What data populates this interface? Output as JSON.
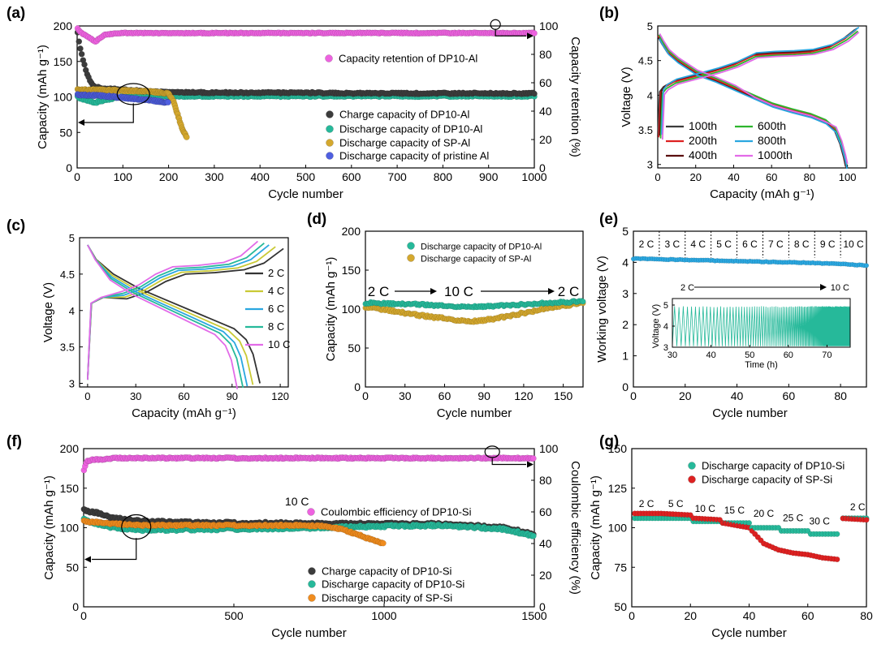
{
  "colors": {
    "black": "#3c3c3c",
    "teal": "#26b99a",
    "gold": "#d4a82e",
    "blue": "#4f5fe0",
    "pink": "#ee62e0",
    "orange": "#f08c1e",
    "red": "#dd2121",
    "cyan": "#2aa7e0",
    "green": "#2db52d",
    "yellow": "#c9c935",
    "darkred": "#5a0f0f",
    "darkgray": "#333333",
    "rose": "#d63a5a",
    "violet": "#e26be8"
  },
  "chart_data": [
    {
      "id": "a",
      "panel_label": "(a)",
      "type": "scatter",
      "xlabel": "Cycle number",
      "ylabel": "Capacity (mAh g⁻¹)",
      "y2label": "Capacity retention (%)",
      "xlim": [
        0,
        1000
      ],
      "ylim": [
        0,
        200
      ],
      "y2lim": [
        0,
        100
      ],
      "xticks": [
        0,
        100,
        200,
        300,
        400,
        500,
        600,
        700,
        800,
        900,
        1000
      ],
      "yticks": [
        0,
        50,
        100,
        150,
        200
      ],
      "y2ticks": [
        0,
        20,
        40,
        60,
        80,
        100
      ],
      "legend": [
        "Charge capacity of DP10-Al",
        "Discharge capacity of DP10-Al",
        "Discharge capacity of SP-Al",
        "Discharge capacity of pristine Al"
      ],
      "legend2": [
        "Capacity retention of DP10-Al"
      ],
      "series": [
        {
          "name": "Charge capacity of DP10-Al",
          "color": "black",
          "x": [
            1,
            5,
            10,
            20,
            30,
            40,
            60,
            100,
            150,
            200,
            300,
            400,
            500,
            600,
            700,
            800,
            900,
            1000
          ],
          "y": [
            190,
            175,
            160,
            135,
            120,
            114,
            112,
            110,
            108,
            107,
            106,
            106,
            106,
            105,
            105,
            105,
            105,
            105
          ]
        },
        {
          "name": "Discharge capacity of DP10-Al",
          "color": "teal",
          "x": [
            1,
            20,
            40,
            60,
            100,
            150,
            200,
            300,
            400,
            500,
            600,
            700,
            800,
            900,
            1000
          ],
          "y": [
            100,
            95,
            92,
            96,
            100,
            101,
            101,
            101,
            101,
            101,
            101,
            101,
            101,
            101,
            101
          ]
        },
        {
          "name": "Discharge capacity of SP-Al",
          "color": "gold",
          "x": [
            1,
            50,
            100,
            150,
            200,
            210,
            220,
            230,
            240
          ],
          "y": [
            110,
            110,
            109,
            108,
            105,
            95,
            75,
            55,
            43
          ]
        },
        {
          "name": "Discharge capacity of pristine Al",
          "color": "blue",
          "x": [
            1,
            50,
            100,
            150,
            200
          ],
          "y": [
            103,
            102,
            99,
            96,
            92
          ]
        },
        {
          "name": "Capacity retention of DP10-Al",
          "color": "pink",
          "axis": "y2",
          "x": [
            1,
            10,
            25,
            40,
            60,
            100,
            200,
            400,
            600,
            800,
            1000
          ],
          "y": [
            98,
            95,
            92,
            89,
            94,
            95,
            95,
            95,
            95,
            95,
            95
          ]
        }
      ]
    },
    {
      "id": "b",
      "panel_label": "(b)",
      "type": "line",
      "xlabel": "Capacity (mAh g⁻¹)",
      "ylabel": "Voltage (V)",
      "xlim": [
        0,
        110
      ],
      "ylim": [
        2.95,
        5.0
      ],
      "xticks": [
        0,
        20,
        40,
        60,
        80,
        100
      ],
      "yticks": [
        3.0,
        3.5,
        4.0,
        4.5,
        5.0
      ],
      "legend": [
        "100th",
        "200th",
        "400th",
        "600th",
        "800th",
        "1000th"
      ],
      "series": [
        {
          "name": "100th",
          "color": "black"
        },
        {
          "name": "200th",
          "color": "red"
        },
        {
          "name": "400th",
          "color": "darkred"
        },
        {
          "name": "600th",
          "color": "green"
        },
        {
          "name": "800th",
          "color": "cyan"
        },
        {
          "name": "1000th",
          "color": "violet"
        }
      ],
      "charge_curve": {
        "x": [
          0,
          1,
          3,
          8,
          15,
          22,
          30,
          40,
          50,
          60,
          70,
          80,
          90,
          98,
          104
        ],
        "y": [
          3.4,
          4.05,
          4.12,
          4.2,
          4.25,
          4.3,
          4.36,
          4.45,
          4.58,
          4.6,
          4.61,
          4.63,
          4.7,
          4.82,
          4.95
        ]
      },
      "discharge_curve": {
        "x": [
          0,
          2,
          5,
          10,
          20,
          30,
          40,
          50,
          60,
          70,
          80,
          88,
          93,
          96,
          98,
          99
        ],
        "y": [
          4.85,
          4.75,
          4.62,
          4.5,
          4.32,
          4.22,
          4.1,
          3.98,
          3.86,
          3.78,
          3.71,
          3.62,
          3.5,
          3.3,
          3.1,
          2.97
        ]
      }
    },
    {
      "id": "c",
      "panel_label": "(c)",
      "type": "line",
      "xlabel": "Capacity (mAh g⁻¹)",
      "ylabel": "Voltage (V)",
      "xlim": [
        -5,
        125
      ],
      "ylim": [
        2.95,
        5.0
      ],
      "xticks": [
        0,
        30,
        60,
        90,
        120
      ],
      "yticks": [
        3.0,
        3.5,
        4.0,
        4.5,
        5.0
      ],
      "legend": [
        "2 C",
        "4 C",
        "6 C",
        "8 C",
        "10 C"
      ],
      "series": [
        {
          "name": "2 C",
          "color": "darkgray",
          "xmax": 122
        },
        {
          "name": "4 C",
          "color": "yellow",
          "xmax": 117
        },
        {
          "name": "6 C",
          "color": "cyan",
          "xmax": 113
        },
        {
          "name": "8 C",
          "color": "teal",
          "xmax": 110
        },
        {
          "name": "10 C",
          "color": "violet",
          "xmax": 106
        }
      ],
      "charge_curve": {
        "x": [
          0,
          0.02,
          0.08,
          0.2,
          0.3,
          0.4,
          0.5,
          0.65,
          0.8,
          0.9,
          1.0
        ],
        "y": [
          3.05,
          4.1,
          4.18,
          4.26,
          4.35,
          4.5,
          4.6,
          4.62,
          4.66,
          4.75,
          4.95
        ]
      },
      "discharge_curve": {
        "x": [
          0,
          0.05,
          0.15,
          0.3,
          0.45,
          0.6,
          0.75,
          0.85,
          0.92,
          0.96,
          0.99,
          1.0
        ],
        "y": [
          4.9,
          4.7,
          4.5,
          4.3,
          4.15,
          4.0,
          3.85,
          3.75,
          3.6,
          3.4,
          3.1,
          3.0
        ]
      }
    },
    {
      "id": "d",
      "panel_label": "(d)",
      "type": "scatter",
      "xlabel": "Cycle number",
      "ylabel": "Capacity (mAh g⁻¹)",
      "xlim": [
        0,
        165
      ],
      "ylim": [
        0,
        200
      ],
      "xticks": [
        0,
        30,
        60,
        90,
        120,
        150
      ],
      "yticks": [
        0,
        50,
        100,
        150,
        200
      ],
      "legend": [
        "Discharge capacity of DP10-Al",
        "Discharge capacity of SP-Al"
      ],
      "annotation": [
        "2 C",
        "10 C",
        "2 C"
      ],
      "series": [
        {
          "name": "Discharge capacity of DP10-Al",
          "color": "teal",
          "x": [
            0,
            20,
            40,
            60,
            80,
            100,
            120,
            140,
            165
          ],
          "y": [
            108,
            107,
            106,
            104,
            103,
            104,
            106,
            108,
            110
          ]
        },
        {
          "name": "Discharge capacity of SP-Al",
          "color": "gold",
          "x": [
            0,
            20,
            40,
            60,
            80,
            100,
            120,
            140,
            165
          ],
          "y": [
            103,
            98,
            92,
            88,
            84,
            88,
            95,
            102,
            108
          ]
        }
      ]
    },
    {
      "id": "e",
      "panel_label": "(e)",
      "type": "scatter",
      "xlabel": "Cycle number",
      "ylabel": "Working voltage (V)",
      "xlim": [
        0,
        90
      ],
      "ylim": [
        0,
        5
      ],
      "xticks": [
        0,
        20,
        40,
        60,
        80
      ],
      "yticks": [
        0,
        1,
        2,
        3,
        4,
        5
      ],
      "rate_labels": [
        "2 C",
        "3 C",
        "4 C",
        "5 C",
        "6 C",
        "7 C",
        "8 C",
        "9 C",
        "10 C"
      ],
      "series": [
        {
          "name": "Working voltage",
          "color": "cyan",
          "x": [
            0,
            10,
            20,
            30,
            40,
            50,
            60,
            70,
            80,
            90
          ],
          "y": [
            4.12,
            4.1,
            4.08,
            4.06,
            4.04,
            4.02,
            4.0,
            3.98,
            3.95,
            3.9
          ]
        }
      ],
      "inset": {
        "type": "line",
        "xlabel": "Time (h)",
        "ylabel": "Voltage (V)",
        "xlim": [
          30,
          76
        ],
        "ylim": [
          3,
          5
        ],
        "xticks": [
          30,
          40,
          50,
          60,
          70
        ],
        "yticks": [
          3,
          4,
          5
        ],
        "annotation": [
          "2 C",
          "10 C"
        ],
        "color": "teal"
      }
    },
    {
      "id": "f",
      "panel_label": "(f)",
      "type": "scatter",
      "xlabel": "Cycle number",
      "ylabel": "Capacity (mAh g⁻¹)",
      "y2label": "Coulombic efficiency (%)",
      "xlim": [
        0,
        1500
      ],
      "ylim": [
        0,
        200
      ],
      "y2lim": [
        0,
        100
      ],
      "xticks": [
        0,
        500,
        1000,
        1500
      ],
      "yticks": [
        0,
        50,
        100,
        150,
        200
      ],
      "y2ticks": [
        0,
        20,
        40,
        60,
        80,
        100
      ],
      "legend": [
        "Charge capacity of DP10-Si",
        "Discharge capacity of DP10-Si",
        "Discharge capacity of SP-Si"
      ],
      "legend2": [
        "Coulombic efficiency of DP10-Si"
      ],
      "annotation": "10 C",
      "series": [
        {
          "name": "Charge capacity of DP10-Si",
          "color": "black",
          "x": [
            1,
            50,
            100,
            200,
            400,
            600,
            800,
            1000,
            1200,
            1400,
            1500
          ],
          "y": [
            122,
            118,
            112,
            108,
            106,
            106,
            105,
            105,
            105,
            100,
            92
          ]
        },
        {
          "name": "Discharge capacity of DP10-Si",
          "color": "teal",
          "x": [
            1,
            50,
            100,
            200,
            400,
            600,
            800,
            1000,
            1200,
            1400,
            1500
          ],
          "y": [
            110,
            104,
            100,
            97,
            98,
            99,
            100,
            102,
            103,
            98,
            90
          ]
        },
        {
          "name": "Discharge capacity of SP-Si",
          "color": "orange",
          "x": [
            1,
            100,
            200,
            400,
            600,
            700,
            800,
            850,
            900,
            950,
            1000
          ],
          "y": [
            108,
            105,
            103,
            103,
            103,
            103,
            102,
            99,
            93,
            86,
            80
          ]
        },
        {
          "name": "Coulombic efficiency of DP10-Si",
          "color": "pink",
          "axis": "y2",
          "x": [
            1,
            10,
            30,
            60,
            100,
            300,
            600,
            900,
            1200,
            1500
          ],
          "y": [
            86,
            92,
            93,
            93,
            94,
            94,
            94,
            94,
            94,
            94
          ]
        }
      ]
    },
    {
      "id": "g",
      "panel_label": "(g)",
      "type": "scatter",
      "xlabel": "Cycle number",
      "ylabel": "Capacity (mAh g⁻¹)",
      "xlim": [
        0,
        80
      ],
      "ylim": [
        50,
        150
      ],
      "xticks": [
        0,
        20,
        40,
        60,
        80
      ],
      "yticks": [
        50,
        75,
        100,
        125,
        150
      ],
      "legend": [
        "Discharge capacity of DP10-Si",
        "Discharge capacity of SP-Si"
      ],
      "rate_labels": [
        "2 C",
        "5 C",
        "10 C",
        "15 C",
        "20 C",
        "25 C",
        "30 C",
        "2 C"
      ],
      "series": [
        {
          "name": "Discharge capacity of DP10-Si",
          "color": "teal",
          "x": [
            1,
            10,
            20,
            21,
            30,
            31,
            40,
            41,
            50,
            51,
            60,
            61,
            70,
            71,
            80
          ],
          "y": [
            106,
            106,
            106,
            104,
            104,
            103,
            103,
            100,
            100,
            98,
            98,
            96,
            96,
            106,
            106
          ]
        },
        {
          "name": "Discharge capacity of SP-Si",
          "color": "red",
          "x": [
            1,
            10,
            20,
            21,
            30,
            31,
            40,
            42,
            45,
            50,
            55,
            60,
            65,
            70,
            71,
            80
          ],
          "y": [
            109,
            109,
            108,
            106,
            105,
            103,
            100,
            96,
            90,
            86,
            84,
            83,
            81,
            80,
            106,
            105
          ]
        }
      ]
    }
  ]
}
